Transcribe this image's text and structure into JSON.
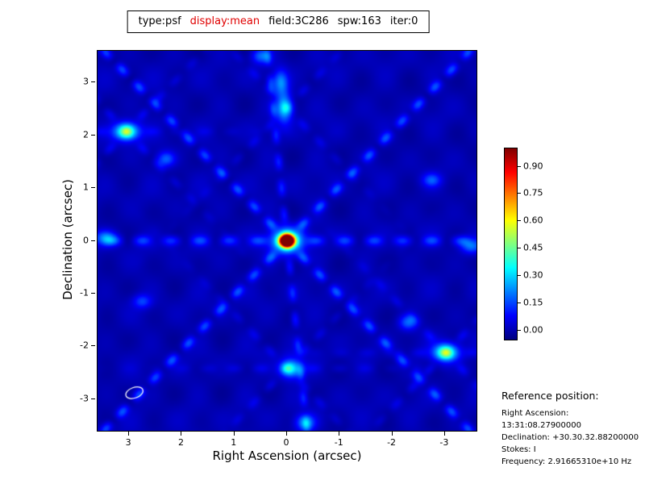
{
  "title": {
    "parts": [
      {
        "text": "type:psf",
        "color": "#000000"
      },
      {
        "text": "display:mean",
        "color": "#e00000"
      },
      {
        "text": "field:3C286",
        "color": "#000000"
      },
      {
        "text": "spw:163",
        "color": "#000000"
      },
      {
        "text": "iter:0",
        "color": "#000000"
      }
    ]
  },
  "plot": {
    "xlabel": "Right Ascension (arcsec)",
    "ylabel": "Declination (arcsec)",
    "x_ticks": [
      {
        "label": "3",
        "value": 3
      },
      {
        "label": "2",
        "value": 2
      },
      {
        "label": "1",
        "value": 1
      },
      {
        "label": "0",
        "value": 0
      },
      {
        "label": "-1",
        "value": -1
      },
      {
        "label": "-2",
        "value": -2
      },
      {
        "label": "-3",
        "value": -3
      }
    ],
    "y_ticks": [
      {
        "label": "3",
        "value": 3
      },
      {
        "label": "2",
        "value": 2
      },
      {
        "label": "1",
        "value": 1
      },
      {
        "label": "0",
        "value": 0
      },
      {
        "label": "-1",
        "value": -1
      },
      {
        "label": "-2",
        "value": -2
      },
      {
        "label": "-3",
        "value": -3
      }
    ]
  },
  "colorbar": {
    "ticks": [
      {
        "label": "0.90",
        "value": 0.9
      },
      {
        "label": "0.75",
        "value": 0.75
      },
      {
        "label": "0.60",
        "value": 0.6
      },
      {
        "label": "0.45",
        "value": 0.45
      },
      {
        "label": "0.30",
        "value": 0.3
      },
      {
        "label": "0.15",
        "value": 0.15
      },
      {
        "label": "0.00",
        "value": 0.0
      }
    ]
  },
  "reference": {
    "heading": "Reference position:",
    "lines": [
      "Right Ascension: 13:31:08.27900000",
      "Declination: +30.30.32.88200000",
      "Stokes: I",
      "Frequency: 2.91665310e+10 Hz"
    ]
  },
  "chart_data": {
    "type": "heatmap",
    "title": "type:psf display:mean field:3C286 spw:163 iter:0",
    "xlabel": "Right Ascension (arcsec)",
    "ylabel": "Declination (arcsec)",
    "x_range": [
      3.6,
      -3.6
    ],
    "y_range": [
      -3.6,
      3.6
    ],
    "colormap": "jet",
    "vmin": -0.05,
    "vmax": 1.0,
    "colorbar_ticks": [
      0.9,
      0.75,
      0.6,
      0.45,
      0.3,
      0.15,
      0.0
    ],
    "main_peak": {
      "x": 0.0,
      "y": 0.0,
      "amplitude": 1.0
    },
    "features": {
      "peaks": [
        {
          "x": 0.0,
          "y": 0.0,
          "amp": 1.0,
          "sx": 0.085,
          "sy": 0.07
        },
        {
          "x": 0.0,
          "y": 0.0,
          "amp": 0.5,
          "sx": 0.2,
          "sy": 0.16
        },
        {
          "x": 3.05,
          "y": 2.07,
          "amp": 0.4,
          "sx": 0.17,
          "sy": 0.12
        },
        {
          "x": -3.02,
          "y": -2.12,
          "amp": 0.4,
          "sx": 0.17,
          "sy": 0.12
        },
        {
          "x": 0.05,
          "y": 2.52,
          "amp": 0.28,
          "sx": 0.11,
          "sy": 0.2
        },
        {
          "x": 0.12,
          "y": 3.0,
          "amp": 0.22,
          "sx": 0.1,
          "sy": 0.16
        },
        {
          "x": -0.08,
          "y": -2.42,
          "amp": 0.3,
          "sx": 0.15,
          "sy": 0.13
        },
        {
          "x": -0.35,
          "y": -3.45,
          "amp": 0.22,
          "sx": 0.13,
          "sy": 0.11
        },
        {
          "x": 3.45,
          "y": 0.05,
          "amp": 0.22,
          "sx": 0.14,
          "sy": 0.1
        },
        {
          "x": -3.5,
          "y": -0.1,
          "amp": 0.2,
          "sx": 0.14,
          "sy": 0.1
        },
        {
          "x": 2.3,
          "y": 1.55,
          "amp": 0.18,
          "sx": 0.12,
          "sy": 0.1
        },
        {
          "x": -2.3,
          "y": -1.55,
          "amp": 0.18,
          "sx": 0.12,
          "sy": 0.1
        },
        {
          "x": 0.5,
          "y": 3.5,
          "amp": 0.18,
          "sx": 0.12,
          "sy": 0.1
        },
        {
          "x": -2.75,
          "y": 1.15,
          "amp": 0.16,
          "sx": 0.12,
          "sy": 0.09
        },
        {
          "x": 2.75,
          "y": -1.15,
          "amp": 0.14,
          "sx": 0.12,
          "sy": 0.09
        }
      ],
      "arms": [
        {
          "cx": 0,
          "cy": 0,
          "deg": 0,
          "amp": 0.14,
          "w": 0.07,
          "per": 0.55,
          "taper": 99
        },
        {
          "cx": 0,
          "cy": 0,
          "deg": 46,
          "amp": 0.16,
          "w": 0.065,
          "per": 0.45,
          "taper": 99
        },
        {
          "cx": 0,
          "cy": 0,
          "deg": -46,
          "amp": 0.16,
          "w": 0.065,
          "per": 0.45,
          "taper": 99
        },
        {
          "cx": 0,
          "cy": 0,
          "deg": 84,
          "amp": 0.11,
          "w": 0.055,
          "per": 0.5,
          "taper": 99
        },
        {
          "cx": 3.05,
          "cy": 2.07,
          "deg": 46,
          "amp": 0.07,
          "w": 0.06,
          "per": 0.45,
          "taper": 2.5
        },
        {
          "cx": 3.05,
          "cy": 2.07,
          "deg": -46,
          "amp": 0.07,
          "w": 0.06,
          "per": 0.45,
          "taper": 2.5
        },
        {
          "cx": 3.05,
          "cy": 2.07,
          "deg": 0,
          "amp": 0.05,
          "w": 0.06,
          "per": 0.5,
          "taper": 2.5
        },
        {
          "cx": -3.02,
          "cy": -2.12,
          "deg": 46,
          "amp": 0.07,
          "w": 0.06,
          "per": 0.45,
          "taper": 2.5
        },
        {
          "cx": -3.02,
          "cy": -2.12,
          "deg": -46,
          "amp": 0.07,
          "w": 0.06,
          "per": 0.45,
          "taper": 2.5
        },
        {
          "cx": -3.02,
          "cy": -2.12,
          "deg": 0,
          "amp": 0.05,
          "w": 0.06,
          "per": 0.5,
          "taper": 2.5
        },
        {
          "cx": 0,
          "cy": 2.52,
          "deg": 46,
          "amp": 0.06,
          "w": 0.06,
          "per": 0.45,
          "taper": 2.5
        },
        {
          "cx": 0,
          "cy": 2.52,
          "deg": -46,
          "amp": 0.06,
          "w": 0.06,
          "per": 0.45,
          "taper": 2.5
        },
        {
          "cx": 0,
          "cy": -2.42,
          "deg": 46,
          "amp": 0.06,
          "w": 0.06,
          "per": 0.45,
          "taper": 2.5
        },
        {
          "cx": 0,
          "cy": -2.42,
          "deg": -46,
          "amp": 0.06,
          "w": 0.06,
          "per": 0.45,
          "taper": 2.5
        },
        {
          "cx": 0,
          "cy": -2.42,
          "deg": 0,
          "amp": 0.05,
          "w": 0.06,
          "per": 0.5,
          "taper": 2.5
        }
      ],
      "beam_ellipse": {
        "x": 2.9,
        "y": -2.88,
        "rx_arcsec": 0.17,
        "ry_arcsec": 0.1,
        "angle_deg": -20,
        "color": "#ffffff"
      }
    }
  }
}
